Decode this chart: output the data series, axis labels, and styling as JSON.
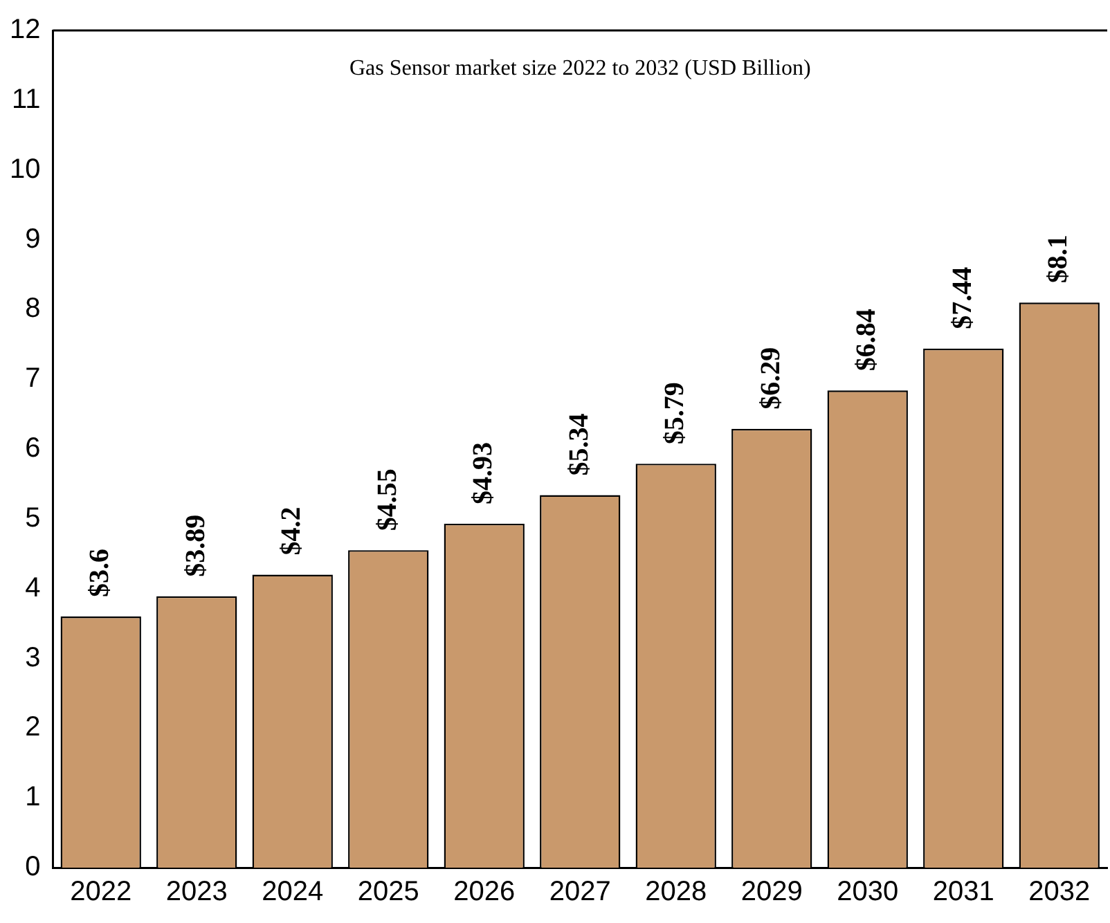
{
  "chart_data": {
    "type": "bar",
    "title": "Gas Sensor market size 2022 to 2032 (USD Billion)",
    "categories": [
      "2022",
      "2023",
      "2024",
      "2025",
      "2026",
      "2027",
      "2028",
      "2029",
      "2030",
      "2031",
      "2032"
    ],
    "values": [
      3.6,
      3.89,
      4.2,
      4.55,
      4.93,
      5.34,
      5.79,
      6.29,
      6.84,
      7.44,
      8.1
    ],
    "value_labels": [
      "$3.6",
      "$3.89",
      "$4.2",
      "$4.55",
      "$4.93",
      "$5.34",
      "$5.79",
      "$6.29",
      "$6.84",
      "$7.44",
      "$8.1"
    ],
    "color": "#c9996c",
    "ylim": [
      0,
      12
    ],
    "yticks": [
      0,
      1,
      2,
      3,
      4,
      5,
      6,
      7,
      8,
      9,
      10,
      11,
      12
    ],
    "grid": false,
    "legend": false
  }
}
